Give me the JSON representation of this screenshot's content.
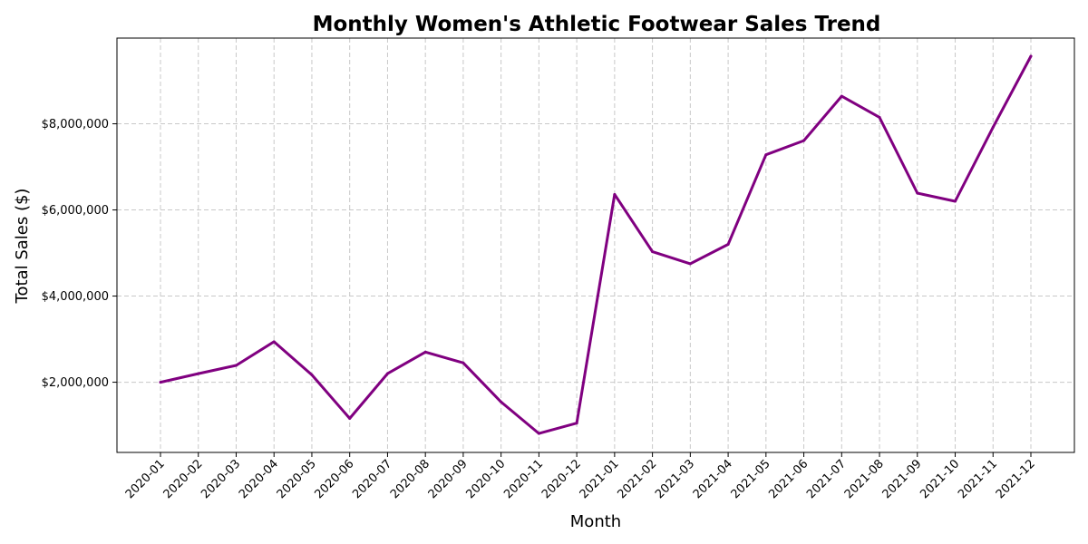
{
  "chart_data": {
    "type": "line",
    "title": "Monthly Women's Athletic Footwear Sales Trend",
    "xlabel": "Month",
    "ylabel": "Total Sales ($)",
    "categories": [
      "2020-01",
      "2020-02",
      "2020-03",
      "2020-04",
      "2020-05",
      "2020-06",
      "2020-07",
      "2020-08",
      "2020-09",
      "2020-10",
      "2020-11",
      "2020-12",
      "2021-01",
      "2021-02",
      "2021-03",
      "2021-04",
      "2021-05",
      "2021-06",
      "2021-07",
      "2021-08",
      "2021-09",
      "2021-10",
      "2021-11",
      "2021-12"
    ],
    "series": [
      {
        "color": "#800080",
        "values": [
          2000000,
          2200000,
          2390000,
          2940000,
          2170000,
          1160000,
          2200000,
          2700000,
          2450000,
          1540000,
          810000,
          1050000,
          6360000,
          5030000,
          4750000,
          5200000,
          7280000,
          7610000,
          8640000,
          8150000,
          6390000,
          6200000,
          7920000,
          9570000
        ]
      }
    ],
    "ylim": [
      370000,
      9990000
    ],
    "yticks": [
      2000000,
      4000000,
      6000000,
      8000000
    ],
    "ytick_labels": [
      "$2,000,000",
      "$4,000,000",
      "$6,000,000",
      "$8,000,000"
    ],
    "grid": true,
    "legend": "none"
  }
}
